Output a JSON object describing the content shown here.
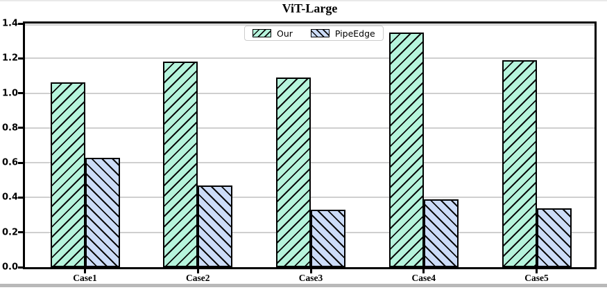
{
  "chart_data": {
    "type": "bar",
    "title": "ViT-Large",
    "categories": [
      "Case1",
      "Case2",
      "Case3",
      "Case4",
      "Case5"
    ],
    "series": [
      {
        "name": "Our",
        "values": [
          1.06,
          1.18,
          1.09,
          1.35,
          1.19
        ],
        "fill": "#b6f4dc",
        "hatch": "/"
      },
      {
        "name": "PipeEdge",
        "values": [
          0.63,
          0.47,
          0.33,
          0.39,
          0.34
        ],
        "fill": "#ccdcf8",
        "hatch": "\\"
      }
    ],
    "xlabel": "",
    "ylabel": "",
    "ylim": [
      0,
      1.4
    ],
    "ytick_labels": [
      "0.0",
      "0.2",
      "0.4",
      "0.6",
      "0.8",
      "1.0",
      "1.2",
      "1.4"
    ],
    "grid": "horizontal",
    "legend_position": "upper center",
    "legend_labels": [
      "Our",
      "PipeEdge"
    ]
  },
  "colors": {
    "grid": "#cfcfcf",
    "spine": "#000000",
    "hatch": "#0b0b0b",
    "legend_border": "#cccccc",
    "window_top_edge": "#e9e9e9",
    "window_bottom_bar": "#b9b9b9"
  }
}
